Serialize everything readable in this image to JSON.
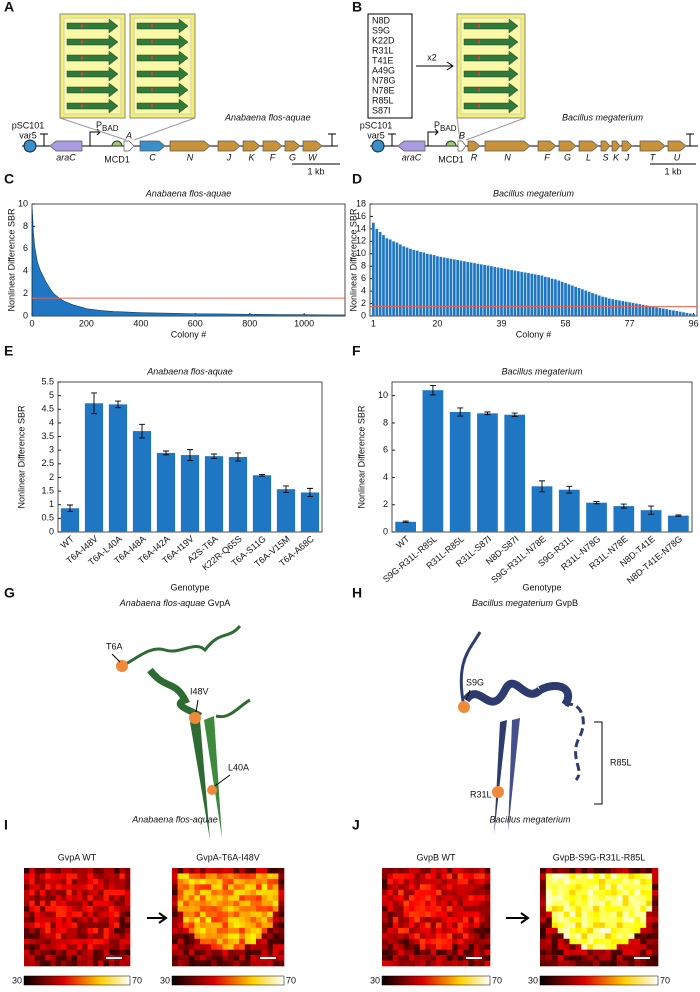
{
  "panel_labels": [
    "A",
    "B",
    "C",
    "D",
    "E",
    "F",
    "G",
    "H",
    "I",
    "J"
  ],
  "diagram_a": {
    "plasmid": "pSC101",
    "variant": "var5",
    "promoter": "P",
    "promoter_sub": "BAD",
    "rbs": "MCD1",
    "species": "Anabaena flos-aquae",
    "scale": "1 kb",
    "genes": [
      "araC",
      "A",
      "C",
      "N",
      "J",
      "K",
      "F",
      "G",
      "W"
    ]
  },
  "diagram_b": {
    "plasmid": "pSC101",
    "variant": "var5",
    "promoter": "P",
    "promoter_sub": "BAD",
    "rbs": "MCD1",
    "species": "Bacillus megaterium",
    "scale": "1 kb",
    "multiplier": "x2",
    "mutations": [
      "N8D",
      "S9G",
      "K22D",
      "R31L",
      "T41E",
      "A49G",
      "N78G",
      "N78E",
      "R85L",
      "S87I"
    ],
    "genes": [
      "araC",
      "B",
      "R",
      "N",
      "F",
      "G",
      "L",
      "S",
      "K",
      "J",
      "T",
      "U"
    ]
  },
  "chart_data": [
    {
      "type": "area",
      "title": "Anabaena flos-aquae",
      "x_label": "Colony #",
      "y_label": "Nonlinear Difference SBR",
      "color": "#1f77c4",
      "x": [
        1,
        5,
        10,
        15,
        20,
        30,
        40,
        50,
        60,
        70,
        80,
        100,
        120,
        150,
        180,
        200,
        250,
        300,
        400,
        500,
        600,
        700,
        800,
        900,
        1000,
        1100,
        1150
      ],
      "values": [
        9.6,
        7.5,
        6.2,
        5.5,
        4.8,
        4.1,
        3.6,
        3.1,
        2.7,
        2.3,
        2.0,
        1.6,
        1.3,
        1.0,
        0.8,
        0.65,
        0.5,
        0.4,
        0.3,
        0.25,
        0.2,
        0.18,
        0.15,
        0.13,
        0.12,
        0.1,
        0.1
      ],
      "xlim": [
        0,
        1150
      ],
      "xticks": [
        0,
        200,
        400,
        600,
        800,
        1000
      ],
      "ylim": [
        0,
        10
      ],
      "yticks": [
        0,
        2,
        4,
        6,
        8,
        10
      ],
      "threshold": 1.6,
      "threshold_color": "#f0604a"
    },
    {
      "type": "bar",
      "title": "Bacillus megaterium",
      "x_label": "Colony #",
      "y_label": "Nonlinear Difference SBR",
      "color": "#1f77c4",
      "x": [
        1,
        2,
        3,
        4,
        5,
        6,
        7,
        8,
        9,
        10,
        11,
        12,
        13,
        14,
        15,
        16,
        17,
        18,
        19,
        20,
        21,
        22,
        23,
        24,
        25,
        26,
        27,
        28,
        29,
        30,
        31,
        32,
        33,
        34,
        35,
        36,
        37,
        38,
        39,
        40,
        41,
        42,
        43,
        44,
        45,
        46,
        47,
        48,
        49,
        50,
        51,
        52,
        53,
        54,
        55,
        56,
        57,
        58,
        59,
        60,
        61,
        62,
        63,
        64,
        65,
        66,
        67,
        68,
        69,
        70,
        71,
        72,
        73,
        74,
        75,
        76,
        77,
        78,
        79,
        80,
        81,
        82,
        83,
        84,
        85,
        86,
        87,
        88,
        89,
        90,
        91,
        92,
        93,
        94,
        95,
        96
      ],
      "values": [
        15,
        14,
        13.5,
        13,
        12.5,
        12.3,
        12,
        11.8,
        11.5,
        11.2,
        11,
        10.8,
        10.6,
        10.5,
        10.3,
        10.2,
        10,
        9.9,
        9.8,
        9.6,
        9.5,
        9.4,
        9.3,
        9.2,
        9.1,
        9,
        8.9,
        8.8,
        8.7,
        8.6,
        8.5,
        8.4,
        8.3,
        8.2,
        8.1,
        8,
        7.9,
        7.8,
        7.7,
        7.6,
        7.5,
        7.4,
        7.3,
        7.2,
        7.1,
        7,
        6.9,
        6.8,
        6.7,
        6.6,
        6.5,
        6.3,
        6.2,
        6,
        5.9,
        5.7,
        5.5,
        5.3,
        5.1,
        4.9,
        4.7,
        4.5,
        4.3,
        4.1,
        3.9,
        3.7,
        3.5,
        3.3,
        3.1,
        3,
        2.8,
        2.7,
        2.6,
        2.5,
        2.4,
        2.3,
        2.2,
        2.1,
        2,
        1.9,
        1.8,
        1.7,
        1.6,
        1.5,
        1.4,
        1.3,
        1.2,
        1.1,
        1,
        0.9,
        0.8,
        0.7,
        0.6,
        0.5,
        0.4,
        0.3
      ],
      "xlim": [
        0,
        97
      ],
      "xticks": [
        1,
        20,
        39,
        58,
        77,
        96
      ],
      "ylim": [
        0,
        18
      ],
      "yticks": [
        0,
        2,
        4,
        6,
        8,
        10,
        12,
        14,
        16,
        18
      ],
      "threshold": 1.5,
      "threshold_color": "#f0604a"
    },
    {
      "type": "errorbar",
      "title": "Anabaena flos-aquae",
      "x_label": "Genotype",
      "y_label": "Nonlinear Difference SBR",
      "color": "#1f77c4",
      "categories": [
        "WT",
        "T6A-I48V",
        "T6A-L40A",
        "T6A-I48A",
        "T6A-I42A",
        "T6A-I19V",
        "A2S-T6A",
        "K22R-Q65S",
        "T6A-S11G",
        "T6A-V15M",
        "T6A-A68C"
      ],
      "values": [
        0.87,
        4.72,
        4.68,
        3.7,
        2.9,
        2.82,
        2.78,
        2.75,
        2.08,
        1.57,
        1.45
      ],
      "errors": [
        0.12,
        0.38,
        0.12,
        0.25,
        0.07,
        0.2,
        0.08,
        0.15,
        0.03,
        0.12,
        0.15
      ],
      "ylim": [
        0,
        5.5
      ],
      "yticks": [
        0,
        0.5,
        1,
        1.5,
        2,
        2.5,
        3,
        3.5,
        4,
        4.5,
        5,
        5.5
      ]
    },
    {
      "type": "errorbar",
      "title": "Bacillus megaterium",
      "x_label": "Genotype",
      "y_label": "Nonlinear Difference SBR",
      "color": "#1f77c4",
      "categories": [
        "WT",
        "S9G-R31L-R85L",
        "R31L-R85L",
        "R31L-S87I",
        "N8D-S87I",
        "S9G-R31L-N78E",
        "S9G-R31L",
        "R31L-N78G",
        "R31L-N78E",
        "N8D-T41E",
        "N8D-T41E-N78G"
      ],
      "values": [
        0.75,
        10.4,
        8.8,
        8.7,
        8.6,
        3.35,
        3.1,
        2.15,
        1.9,
        1.6,
        1.2
      ],
      "errors": [
        0.05,
        0.35,
        0.3,
        0.1,
        0.12,
        0.4,
        0.25,
        0.08,
        0.15,
        0.3,
        0.05
      ],
      "ylim": [
        0,
        11
      ],
      "yticks": [
        0,
        2,
        4,
        6,
        8,
        10
      ]
    }
  ],
  "structures": [
    {
      "species": "Anabaena flos-aquae",
      "protein": "GvpA",
      "mutations": [
        "T6A",
        "I48V",
        "L40A"
      ]
    },
    {
      "species": "Bacillus megaterium",
      "protein": "GvpB",
      "mutations": [
        "S9G",
        "R85L",
        "R31L"
      ]
    }
  ],
  "heatmaps": {
    "colorbar": [
      30,
      70
    ],
    "panels": [
      {
        "species": "Anabaena flos-aquae",
        "before": "GvpA WT",
        "after": "GvpA-T6A-I48V"
      },
      {
        "species": "Bacillus megaterium",
        "before": "GvpB WT",
        "after": "GvpB-S9G-R31L-R85L"
      }
    ]
  }
}
